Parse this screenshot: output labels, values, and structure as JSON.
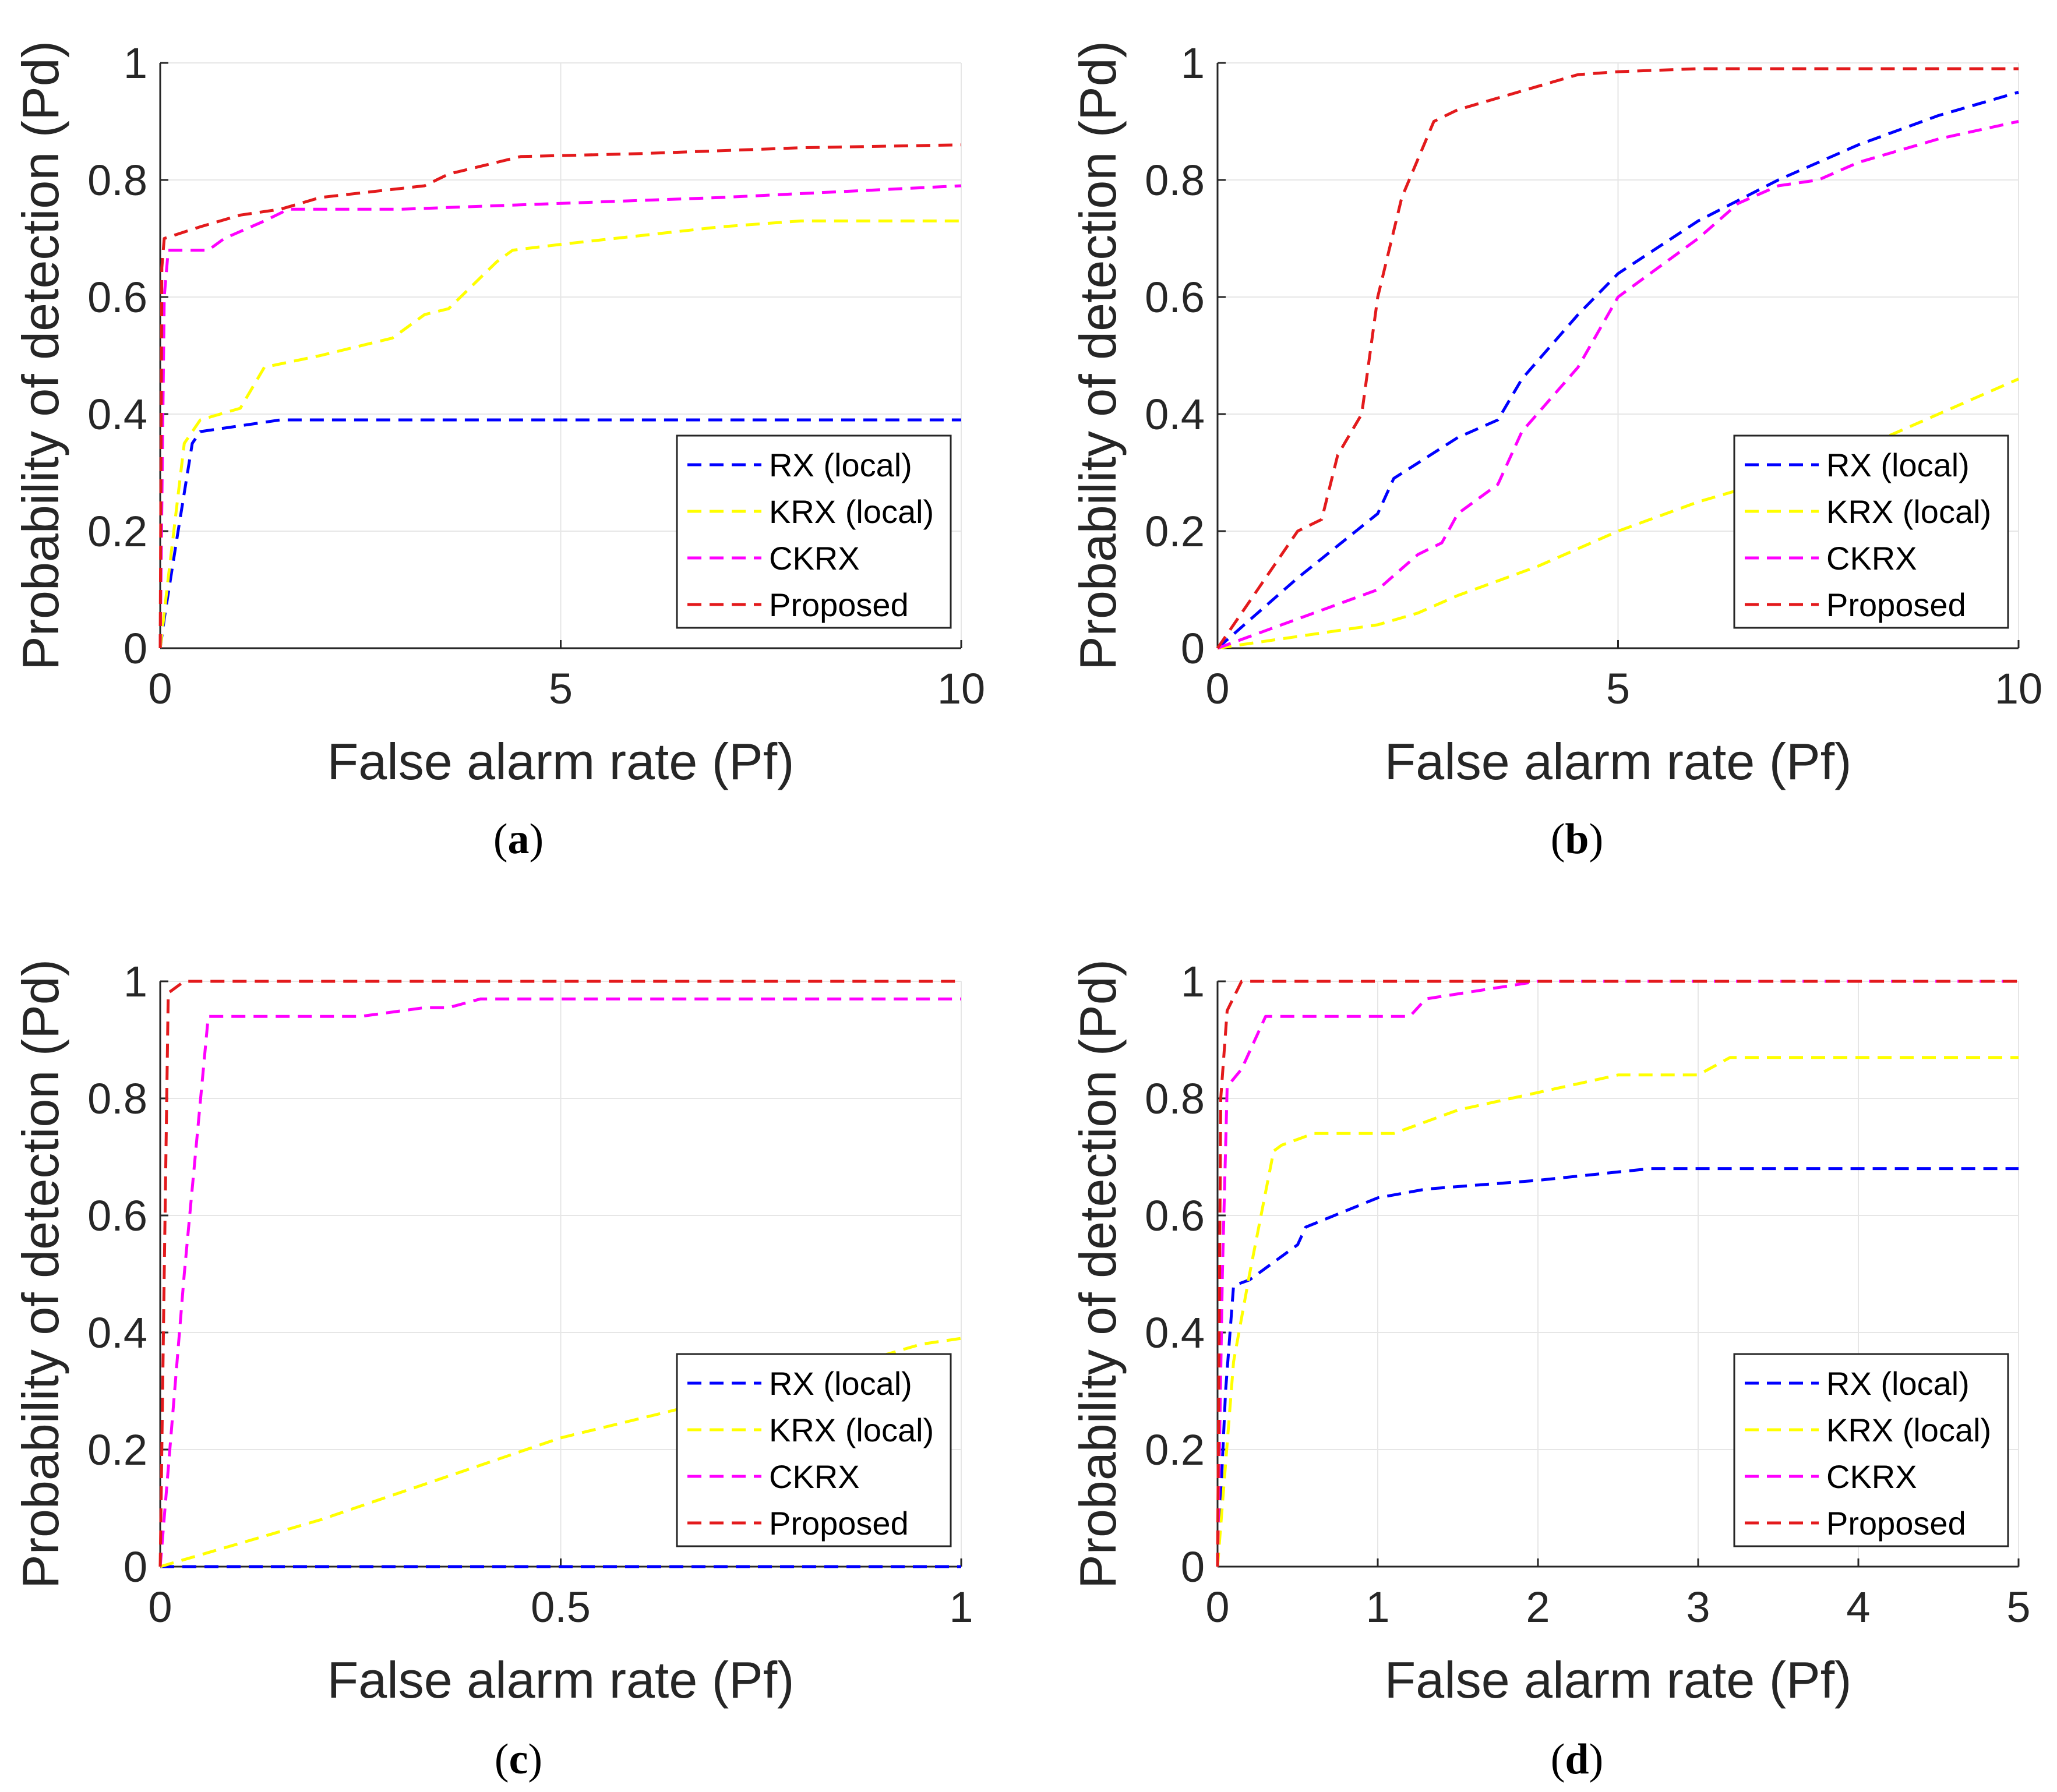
{
  "colors": {
    "rx": "#0000ff",
    "krx": "#ffff00",
    "ckrx": "#ff00ff",
    "proposed": "#e31a1c",
    "grid": "#e6e6e6",
    "axis": "#262626"
  },
  "chart_data": [
    {
      "panel": "a",
      "caption": "a",
      "type": "line",
      "xlabel": "False alarm rate (Pf)",
      "ylabel": "Probability of detection (Pd)",
      "xlim": [
        0,
        10
      ],
      "ylim": [
        0,
        1
      ],
      "xticks": [
        "0",
        "5",
        "10"
      ],
      "xtick_values": [
        0,
        5,
        10
      ],
      "yticks": [
        "0",
        "0.2",
        "0.4",
        "0.6",
        "0.8",
        "1"
      ],
      "ytick_values": [
        0,
        0.2,
        0.4,
        0.6,
        0.8,
        1
      ],
      "grid": true,
      "legend": "bottom-right",
      "series": [
        {
          "name": "RX (local)",
          "color_key": "rx",
          "points": [
            [
              0,
              0
            ],
            [
              0.05,
              0.05
            ],
            [
              0.2,
              0.18
            ],
            [
              0.4,
              0.35
            ],
            [
              0.5,
              0.37
            ],
            [
              1,
              0.38
            ],
            [
              1.5,
              0.39
            ],
            [
              5,
              0.39
            ],
            [
              10,
              0.39
            ]
          ]
        },
        {
          "name": "KRX (local)",
          "color_key": "krx",
          "points": [
            [
              0,
              0
            ],
            [
              0.1,
              0.12
            ],
            [
              0.3,
              0.35
            ],
            [
              0.5,
              0.39
            ],
            [
              1,
              0.41
            ],
            [
              1.3,
              0.48
            ],
            [
              2,
              0.5
            ],
            [
              2.9,
              0.53
            ],
            [
              3.3,
              0.57
            ],
            [
              3.6,
              0.58
            ],
            [
              4.2,
              0.66
            ],
            [
              4.4,
              0.68
            ],
            [
              5,
              0.69
            ],
            [
              7,
              0.72
            ],
            [
              8,
              0.73
            ],
            [
              10,
              0.73
            ]
          ]
        },
        {
          "name": "CKRX",
          "color_key": "ckrx",
          "points": [
            [
              0,
              0
            ],
            [
              0.05,
              0.6
            ],
            [
              0.1,
              0.68
            ],
            [
              0.6,
              0.68
            ],
            [
              0.8,
              0.7
            ],
            [
              1.3,
              0.73
            ],
            [
              1.6,
              0.75
            ],
            [
              3,
              0.75
            ],
            [
              5,
              0.76
            ],
            [
              7,
              0.77
            ],
            [
              10,
              0.79
            ]
          ]
        },
        {
          "name": "Proposed",
          "color_key": "proposed",
          "points": [
            [
              0,
              0
            ],
            [
              0.02,
              0.65
            ],
            [
              0.05,
              0.7
            ],
            [
              0.5,
              0.72
            ],
            [
              1,
              0.74
            ],
            [
              1.5,
              0.75
            ],
            [
              2,
              0.77
            ],
            [
              3.3,
              0.79
            ],
            [
              3.6,
              0.81
            ],
            [
              4.5,
              0.84
            ],
            [
              6,
              0.845
            ],
            [
              8,
              0.855
            ],
            [
              10,
              0.86
            ]
          ]
        }
      ]
    },
    {
      "panel": "b",
      "caption": "b",
      "type": "line",
      "xlabel": "False alarm rate (Pf)",
      "ylabel": "Probability of detection (Pd)",
      "xlim": [
        0,
        10
      ],
      "ylim": [
        0,
        1
      ],
      "xticks": [
        "0",
        "5",
        "10"
      ],
      "xtick_values": [
        0,
        5,
        10
      ],
      "yticks": [
        "0",
        "0.2",
        "0.4",
        "0.6",
        "0.8",
        "1"
      ],
      "ytick_values": [
        0,
        0.2,
        0.4,
        0.6,
        0.8,
        1
      ],
      "grid": true,
      "legend": "bottom-right",
      "series": [
        {
          "name": "RX (local)",
          "color_key": "rx",
          "points": [
            [
              0,
              0
            ],
            [
              1,
              0.12
            ],
            [
              2,
              0.23
            ],
            [
              2.2,
              0.29
            ],
            [
              3,
              0.36
            ],
            [
              3.5,
              0.39
            ],
            [
              3.8,
              0.46
            ],
            [
              4.5,
              0.57
            ],
            [
              5,
              0.64
            ],
            [
              6,
              0.73
            ],
            [
              7,
              0.8
            ],
            [
              8,
              0.86
            ],
            [
              9,
              0.91
            ],
            [
              10,
              0.95
            ]
          ]
        },
        {
          "name": "KRX (local)",
          "color_key": "krx",
          "points": [
            [
              0,
              0
            ],
            [
              1,
              0.02
            ],
            [
              2,
              0.04
            ],
            [
              2.5,
              0.06
            ],
            [
              3,
              0.09
            ],
            [
              4,
              0.14
            ],
            [
              5,
              0.2
            ],
            [
              6,
              0.25
            ],
            [
              7,
              0.29
            ],
            [
              8,
              0.34
            ],
            [
              9,
              0.4
            ],
            [
              10,
              0.46
            ]
          ]
        },
        {
          "name": "CKRX",
          "color_key": "ckrx",
          "points": [
            [
              0,
              0
            ],
            [
              1,
              0.05
            ],
            [
              2,
              0.1
            ],
            [
              2.5,
              0.16
            ],
            [
              2.8,
              0.18
            ],
            [
              3,
              0.23
            ],
            [
              3.5,
              0.28
            ],
            [
              3.8,
              0.37
            ],
            [
              4.5,
              0.48
            ],
            [
              5,
              0.6
            ],
            [
              6,
              0.7
            ],
            [
              6.5,
              0.76
            ],
            [
              7,
              0.79
            ],
            [
              7.5,
              0.8
            ],
            [
              8,
              0.83
            ],
            [
              9,
              0.87
            ],
            [
              10,
              0.9
            ]
          ]
        },
        {
          "name": "Proposed",
          "color_key": "proposed",
          "points": [
            [
              0,
              0
            ],
            [
              0.5,
              0.1
            ],
            [
              1,
              0.2
            ],
            [
              1.3,
              0.22
            ],
            [
              1.5,
              0.33
            ],
            [
              1.8,
              0.4
            ],
            [
              2,
              0.6
            ],
            [
              2.3,
              0.77
            ],
            [
              2.7,
              0.9
            ],
            [
              3,
              0.92
            ],
            [
              4,
              0.96
            ],
            [
              4.5,
              0.98
            ],
            [
              5,
              0.985
            ],
            [
              6,
              0.99
            ],
            [
              10,
              0.99
            ]
          ]
        }
      ]
    },
    {
      "panel": "c",
      "caption": "c",
      "type": "line",
      "xlabel": "False alarm rate (Pf)",
      "ylabel": "Probability of detection (Pd)",
      "xlim": [
        0,
        1
      ],
      "ylim": [
        0,
        1
      ],
      "xticks": [
        "0",
        "0.5",
        "1"
      ],
      "xtick_values": [
        0,
        0.5,
        1
      ],
      "yticks": [
        "0",
        "0.2",
        "0.4",
        "0.6",
        "0.8",
        "1"
      ],
      "ytick_values": [
        0,
        0.2,
        0.4,
        0.6,
        0.8,
        1
      ],
      "grid": true,
      "legend": "bottom-right",
      "series": [
        {
          "name": "RX (local)",
          "color_key": "rx",
          "points": [
            [
              0,
              0
            ],
            [
              1,
              0
            ]
          ]
        },
        {
          "name": "KRX (local)",
          "color_key": "krx",
          "points": [
            [
              0,
              0
            ],
            [
              0.2,
              0.08
            ],
            [
              0.5,
              0.22
            ],
            [
              0.8,
              0.32
            ],
            [
              0.95,
              0.38
            ],
            [
              1,
              0.39
            ]
          ]
        },
        {
          "name": "CKRX",
          "color_key": "ckrx",
          "points": [
            [
              0,
              0
            ],
            [
              0.03,
              0.5
            ],
            [
              0.06,
              0.94
            ],
            [
              0.25,
              0.94
            ],
            [
              0.33,
              0.955
            ],
            [
              0.36,
              0.955
            ],
            [
              0.4,
              0.97
            ],
            [
              1,
              0.97
            ]
          ]
        },
        {
          "name": "Proposed",
          "color_key": "proposed",
          "points": [
            [
              0,
              0
            ],
            [
              0.005,
              0.5
            ],
            [
              0.01,
              0.98
            ],
            [
              0.03,
              1
            ],
            [
              1,
              1
            ]
          ]
        }
      ]
    },
    {
      "panel": "d",
      "caption": "d",
      "type": "line",
      "xlabel": "False alarm rate (Pf)",
      "ylabel": "Probability of detection (Pd)",
      "xlim": [
        0,
        5
      ],
      "ylim": [
        0,
        1
      ],
      "xticks": [
        "0",
        "1",
        "2",
        "3",
        "4",
        "5"
      ],
      "xtick_values": [
        0,
        1,
        2,
        3,
        4,
        5
      ],
      "yticks": [
        "0",
        "0.2",
        "0.4",
        "0.6",
        "0.8",
        "1"
      ],
      "ytick_values": [
        0,
        0.2,
        0.4,
        0.6,
        0.8,
        1
      ],
      "grid": true,
      "legend": "bottom-right",
      "series": [
        {
          "name": "RX (local)",
          "color_key": "rx",
          "points": [
            [
              0,
              0
            ],
            [
              0.05,
              0.3
            ],
            [
              0.1,
              0.48
            ],
            [
              0.2,
              0.49
            ],
            [
              0.5,
              0.55
            ],
            [
              0.55,
              0.58
            ],
            [
              1,
              0.63
            ],
            [
              1.3,
              0.645
            ],
            [
              2,
              0.66
            ],
            [
              2.7,
              0.68
            ],
            [
              5,
              0.68
            ]
          ]
        },
        {
          "name": "KRX (local)",
          "color_key": "krx",
          "points": [
            [
              0,
              0
            ],
            [
              0.1,
              0.35
            ],
            [
              0.2,
              0.5
            ],
            [
              0.35,
              0.71
            ],
            [
              0.4,
              0.72
            ],
            [
              0.6,
              0.74
            ],
            [
              1.1,
              0.74
            ],
            [
              1.5,
              0.78
            ],
            [
              2,
              0.81
            ],
            [
              2.5,
              0.84
            ],
            [
              3,
              0.84
            ],
            [
              3.2,
              0.87
            ],
            [
              5,
              0.87
            ]
          ]
        },
        {
          "name": "CKRX",
          "color_key": "ckrx",
          "points": [
            [
              0,
              0
            ],
            [
              0.03,
              0.5
            ],
            [
              0.06,
              0.82
            ],
            [
              0.15,
              0.85
            ],
            [
              0.3,
              0.94
            ],
            [
              1.2,
              0.94
            ],
            [
              1.3,
              0.97
            ],
            [
              2,
              1
            ],
            [
              5,
              1
            ]
          ]
        },
        {
          "name": "Proposed",
          "color_key": "proposed",
          "points": [
            [
              0,
              0
            ],
            [
              0.02,
              0.8
            ],
            [
              0.06,
              0.95
            ],
            [
              0.15,
              1
            ],
            [
              5,
              1
            ]
          ]
        }
      ]
    }
  ]
}
